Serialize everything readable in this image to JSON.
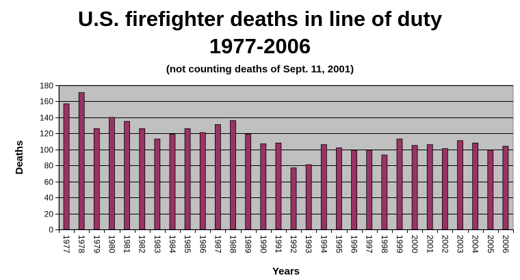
{
  "chart": {
    "title_line1": "U.S. firefighter deaths in line of duty",
    "title_line2": "1977-2006",
    "subtitle": "(not counting deaths of Sept. 11, 2001)"
  },
  "colors": {
    "plot_background": "#c0c0c0",
    "bar_fill": "#993366",
    "gridline": "#000000"
  },
  "chart_data": {
    "type": "bar",
    "title": "U.S. firefighter deaths in line of duty 1977-2006",
    "subtitle": "(not counting deaths of Sept. 11, 2001)",
    "xlabel": "Years",
    "ylabel": "Deaths",
    "ylim": [
      0,
      180
    ],
    "y_ticks": [
      0,
      20,
      40,
      60,
      80,
      100,
      120,
      140,
      160,
      180
    ],
    "grid": true,
    "legend": "none",
    "categories": [
      "1977",
      "1978",
      "1979",
      "1980",
      "1981",
      "1982",
      "1983",
      "1984",
      "1985",
      "1986",
      "1987",
      "1988",
      "1989",
      "1990",
      "1991",
      "1992",
      "1993",
      "1994",
      "1995",
      "1996",
      "1997",
      "1998",
      "1999",
      "2000",
      "2001",
      "2002",
      "2003",
      "2004",
      "2005",
      "2006"
    ],
    "series": [
      {
        "values": [
          157,
          171,
          126,
          140,
          135,
          126,
          113,
          119,
          126,
          121,
          131,
          136,
          119,
          107,
          108,
          77,
          81,
          106,
          102,
          99,
          99,
          93,
          113,
          105,
          106,
          101,
          111,
          108,
          99,
          104
        ]
      }
    ]
  }
}
